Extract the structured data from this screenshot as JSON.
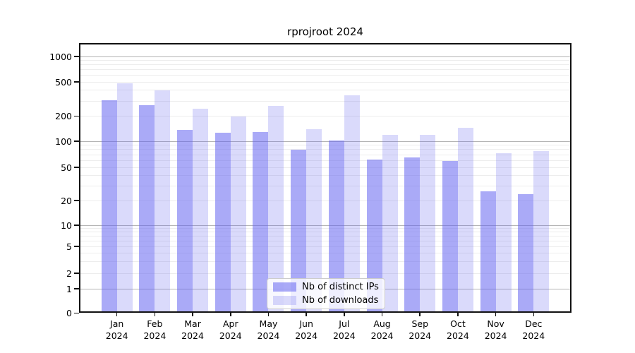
{
  "title": "rprojroot 2024",
  "chart_data": {
    "type": "bar",
    "title": "rprojroot 2024",
    "categories": [
      "Jan",
      "Feb",
      "Mar",
      "Apr",
      "May",
      "Jun",
      "Jul",
      "Aug",
      "Sep",
      "Oct",
      "Nov",
      "Dec"
    ],
    "category_year": "2024",
    "series": [
      {
        "name": "Nb of distinct IPs",
        "color": "rgba(100,100,240,0.55)",
        "values": [
          305,
          270,
          137,
          127,
          130,
          80,
          102,
          62,
          65,
          59,
          26,
          24
        ]
      },
      {
        "name": "Nb of downloads",
        "color": "rgba(100,100,240,0.24)",
        "values": [
          480,
          400,
          245,
          200,
          265,
          140,
          350,
          120,
          120,
          145,
          73,
          77
        ]
      }
    ],
    "y_scale": "symlog",
    "y_ticks": [
      0,
      1,
      2,
      5,
      10,
      20,
      50,
      100,
      200,
      500,
      1000
    ],
    "y_major_gridlines": [
      1,
      10,
      100,
      1000
    ],
    "ylim": [
      0,
      1300
    ],
    "xlabel": "",
    "ylabel": "",
    "grid": true,
    "legend_position": "lower center"
  },
  "colors": {
    "bar_distinct_ips": "rgba(100,100,240,0.55)",
    "bar_downloads": "rgba(100,100,240,0.24)",
    "grid_major": "#b4b4b4",
    "grid_minor": "#ededed",
    "spine": "#111111",
    "legend_border": "#cccccc",
    "legend_background": "rgba(255,255,255,0.8)",
    "text": "#000000"
  }
}
